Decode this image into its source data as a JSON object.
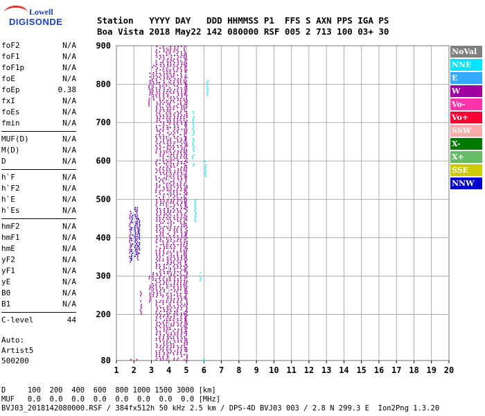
{
  "logo": {
    "line1": "Lowell",
    "line2": "DIGISONDE"
  },
  "header": {
    "row1": "Station   YYYY DAY   DDD HHMMSS P1  FFS S AXN PPS IGA PS",
    "row2": "Boa Vista 2018 May22 142 080000 RSF 005 2 713 100 03+ 30"
  },
  "params": {
    "group1": [
      {
        "name": "foF2",
        "value": "N/A"
      },
      {
        "name": "foF1",
        "value": "N/A"
      },
      {
        "name": "foF1p",
        "value": "N/A"
      },
      {
        "name": "foE",
        "value": "N/A"
      },
      {
        "name": "foEp",
        "value": "0.38"
      },
      {
        "name": "fxI",
        "value": "N/A"
      },
      {
        "name": "foEs",
        "value": "N/A"
      },
      {
        "name": "fmin",
        "value": "N/A"
      }
    ],
    "group2": [
      {
        "name": "MUF(D)",
        "value": "N/A"
      },
      {
        "name": "M(D)",
        "value": "N/A"
      },
      {
        "name": "D",
        "value": "N/A"
      }
    ],
    "group3": [
      {
        "name": "h`F",
        "value": "N/A"
      },
      {
        "name": "h`F2",
        "value": "N/A"
      },
      {
        "name": "h`E",
        "value": "N/A"
      },
      {
        "name": "h`Es",
        "value": "N/A"
      }
    ],
    "group4": [
      {
        "name": "hmF2",
        "value": "N/A"
      },
      {
        "name": "hmF1",
        "value": "N/A"
      },
      {
        "name": "hmE",
        "value": "N/A"
      },
      {
        "name": "yF2",
        "value": "N/A"
      },
      {
        "name": "yF1",
        "value": "N/A"
      },
      {
        "name": "yE",
        "value": "N/A"
      },
      {
        "name": "B0",
        "value": "N/A"
      },
      {
        "name": "B1",
        "value": "N/A"
      }
    ],
    "group5": [
      {
        "name": "C-level",
        "value": "44"
      }
    ]
  },
  "auto": {
    "line1": "Auto:",
    "line2": "Artist5",
    "line3": "500200"
  },
  "legend": [
    {
      "label": "NoVal",
      "color": "#808080"
    },
    {
      "label": "NNE",
      "color": "#00e5ff"
    },
    {
      "label": "E",
      "color": "#33aaff"
    },
    {
      "label": "W",
      "color": "#a0009f"
    },
    {
      "label": "Vo-",
      "color": "#ff33aa"
    },
    {
      "label": "Vo+",
      "color": "#ff0033"
    },
    {
      "label": "SSW",
      "color": "#ffaaaa"
    },
    {
      "label": "X-",
      "color": "#007a00"
    },
    {
      "label": "X+",
      "color": "#66bb66"
    },
    {
      "label": "SSE",
      "color": "#cccc00"
    },
    {
      "label": "NNW",
      "color": "#0000cc"
    }
  ],
  "footer": {
    "row1": "D     100  200  400  600  800 1000 1500 3000 [km]",
    "row2": "MUF   0.0  0.0  0.0  0.0  0.0  0.0  0.0  0.0 [MHz]",
    "row3": "BVJ03_2018142080000.RSF / 384fx512h 50 kHz 2.5 km / DPS-4D BVJ03 003 / 2.8 N 299.3 E  Ion2Png 1.3.20"
  },
  "chart_data": {
    "type": "scatter",
    "xlim": [
      1,
      20
    ],
    "ylim": [
      80,
      900
    ],
    "xticks": [
      1,
      2,
      3,
      4,
      5,
      6,
      7,
      8,
      9,
      10,
      11,
      12,
      13,
      14,
      15,
      16,
      17,
      18,
      19,
      20
    ],
    "yticks": [
      80,
      200,
      300,
      400,
      500,
      600,
      700,
      800,
      900
    ],
    "grid": true,
    "legend_position": "right",
    "series": [
      {
        "name": "W",
        "color": "#a0009f",
        "columns": [
          {
            "x": 3.3,
            "ymin": 80,
            "ymax": 900
          },
          {
            "x": 3.5,
            "ymin": 80,
            "ymax": 900
          },
          {
            "x": 3.7,
            "ymin": 80,
            "ymax": 900
          },
          {
            "x": 3.9,
            "ymin": 80,
            "ymax": 900
          },
          {
            "x": 4.1,
            "ymin": 100,
            "ymax": 900
          },
          {
            "x": 4.3,
            "ymin": 80,
            "ymax": 900
          },
          {
            "x": 4.5,
            "ymin": 80,
            "ymax": 900
          },
          {
            "x": 4.7,
            "ymin": 90,
            "ymax": 900
          },
          {
            "x": 4.9,
            "ymin": 80,
            "ymax": 900
          },
          {
            "x": 5.0,
            "ymin": 80,
            "ymax": 880
          },
          {
            "x": 2.9,
            "ymin": 230,
            "ymax": 300
          },
          {
            "x": 3.1,
            "ymin": 240,
            "ymax": 310
          },
          {
            "x": 2.9,
            "ymin": 740,
            "ymax": 830
          },
          {
            "x": 3.1,
            "ymin": 760,
            "ymax": 850
          },
          {
            "x": 2.4,
            "ymin": 200,
            "ymax": 260
          },
          {
            "x": 1.8,
            "ymin": 330,
            "ymax": 470
          },
          {
            "x": 2.2,
            "ymin": 340,
            "ymax": 480
          }
        ]
      },
      {
        "name": "NNE",
        "color": "#00e5ff",
        "columns": [
          {
            "x": 5.4,
            "ymin": 580,
            "ymax": 730
          },
          {
            "x": 5.5,
            "ymin": 440,
            "ymax": 500
          },
          {
            "x": 6.2,
            "ymin": 770,
            "ymax": 810
          },
          {
            "x": 6.1,
            "ymin": 560,
            "ymax": 600
          },
          {
            "x": 5.8,
            "ymin": 290,
            "ymax": 310
          },
          {
            "x": 6.0,
            "ymin": 80,
            "ymax": 85
          }
        ]
      },
      {
        "name": "NNW",
        "color": "#0000cc",
        "columns": [
          {
            "x": 1.9,
            "ymin": 340,
            "ymax": 460
          },
          {
            "x": 2.1,
            "ymin": 350,
            "ymax": 480
          },
          {
            "x": 2.3,
            "ymin": 360,
            "ymax": 450
          }
        ]
      },
      {
        "name": "Vo+",
        "color": "#ff0033",
        "columns": [
          {
            "x": 2.2,
            "ymin": 80,
            "ymax": 84
          },
          {
            "x": 1.8,
            "ymin": 80,
            "ymax": 84
          }
        ]
      }
    ]
  }
}
